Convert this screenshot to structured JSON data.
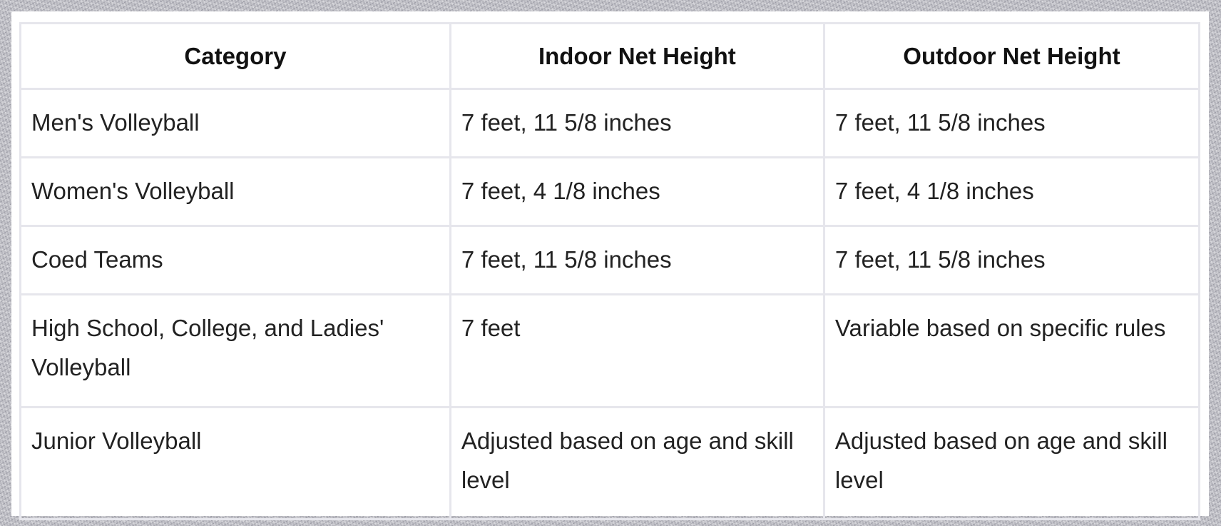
{
  "table": {
    "headers": [
      "Category",
      "Indoor Net Height",
      "Outdoor Net Height"
    ],
    "rows": [
      [
        "Men's Volleyball",
        "7 feet, 11 5/8 inches",
        "7 feet, 11 5/8 inches"
      ],
      [
        "Women's Volleyball",
        "7 feet, 4 1/8 inches",
        "7 feet, 4 1/8 inches"
      ],
      [
        "Coed Teams",
        "7 feet, 11 5/8 inches",
        "7 feet, 11 5/8 inches"
      ],
      [
        "High School, College, and Ladies' Volleyball",
        "7 feet",
        "Variable based on specific rules"
      ],
      [
        "Junior Volleyball",
        "Adjusted based on age and skill level",
        "Adjusted based on age and skill level"
      ]
    ]
  }
}
